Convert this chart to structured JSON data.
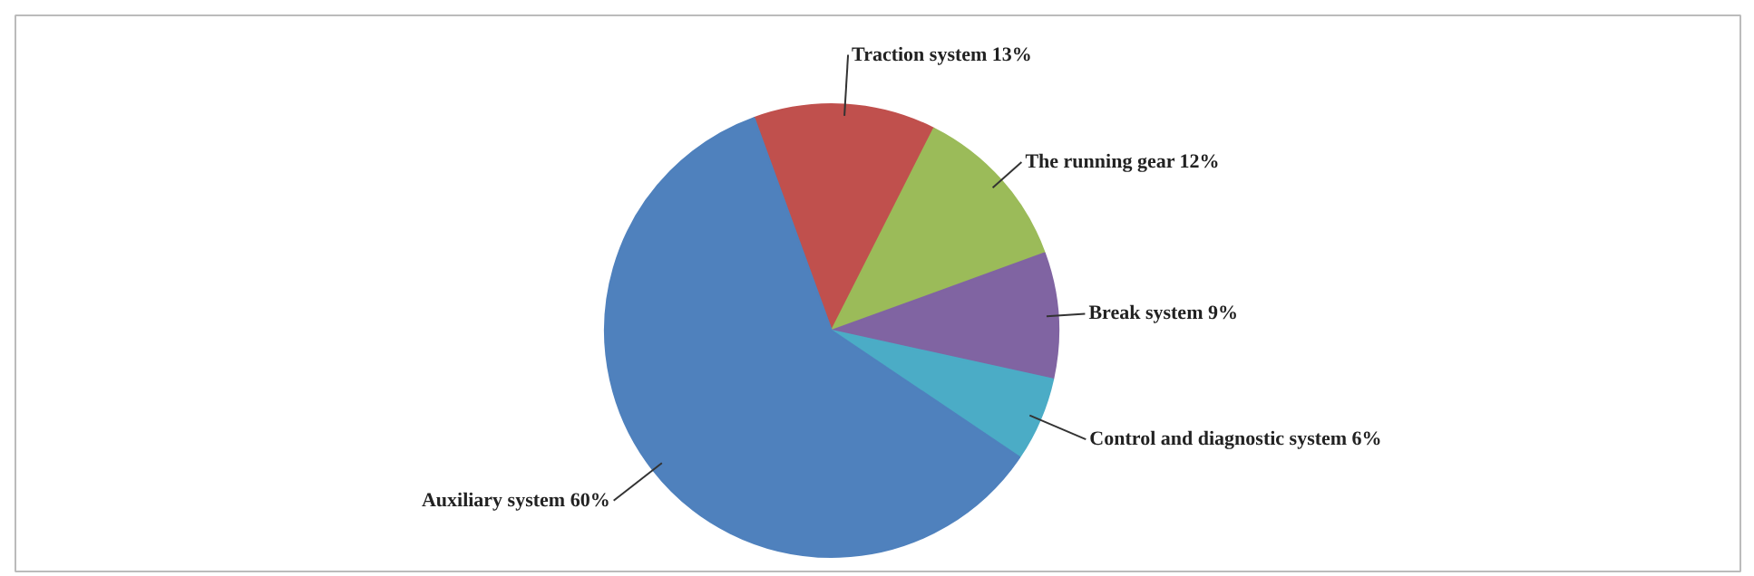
{
  "chart_data": {
    "type": "pie",
    "categories": [
      "Traction system",
      "The running gear",
      "Break system",
      "Control and diagnostic system",
      "Auxiliary system"
    ],
    "values": [
      13,
      12,
      9,
      6,
      60
    ],
    "value_labels": [
      "13%",
      "12%",
      "9%",
      "6%",
      "60%"
    ],
    "colors": [
      "#c0504d",
      "#9bbb59",
      "#8064a2",
      "#4bacc6",
      "#4f81bd"
    ]
  }
}
